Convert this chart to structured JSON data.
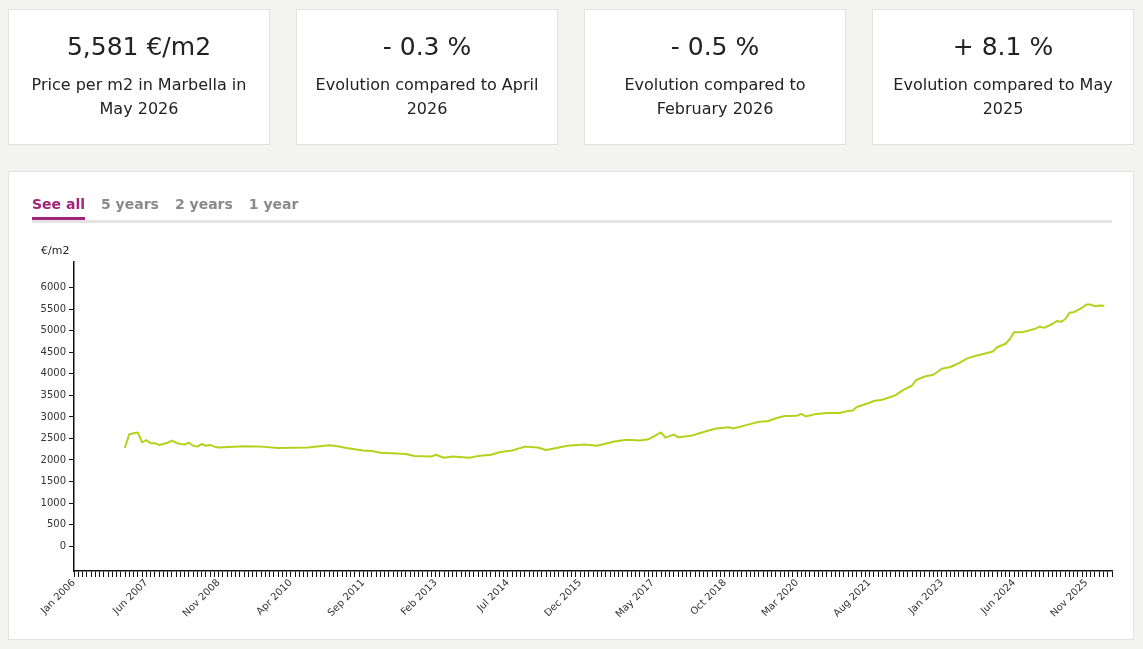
{
  "chart_data": [
    {
      "type": "other",
      "annotations": [
        "5,581 €/m2",
        "Price per m2 in Marbella in May 2026",
        "- 0.3 %",
        "Evolution compared to April 2026",
        "- 0.5 %",
        "Evolution compared to February 2026",
        "+ 8.1 %",
        "Evolution compared to May 2025"
      ]
    },
    {
      "type": "line",
      "ylabel": "€/m2",
      "annotations": [
        "See all",
        "5 years",
        "2 years",
        "1 year"
      ],
      "color": "#b3d21c",
      "marker": "none",
      "line_style": "solid",
      "grid": false,
      "x": [
        "2007-01",
        "2007-02",
        "2007-03",
        "2007-04",
        "2007-05",
        "2007-06",
        "2007-07",
        "2007-08",
        "2007-09",
        "2007-10",
        "2007-11",
        "2007-12",
        "2008-01",
        "2008-02",
        "2008-03",
        "2008-04",
        "2008-05",
        "2008-06",
        "2008-07",
        "2008-08",
        "2008-09",
        "2008-10",
        "2008-11",
        "2009-05",
        "2009-09",
        "2010-01",
        "2010-08",
        "2011-01",
        "2011-03",
        "2011-05",
        "2011-07",
        "2011-09",
        "2011-11",
        "2012-01",
        "2012-05",
        "2012-07",
        "2012-09",
        "2013-01",
        "2013-02",
        "2013-04",
        "2013-06",
        "2013-10",
        "2013-12",
        "2014-03",
        "2014-05",
        "2014-08",
        "2014-11",
        "2015-02",
        "2015-04",
        "2015-07",
        "2015-09",
        "2016-01",
        "2016-04",
        "2016-08",
        "2016-11",
        "2017-02",
        "2017-04",
        "2017-07",
        "2017-08",
        "2017-10",
        "2017-11",
        "2018-02",
        "2018-04",
        "2018-06",
        "2018-08",
        "2018-11",
        "2018-12",
        "2019-03",
        "2019-06",
        "2019-08",
        "2019-10",
        "2019-12",
        "2020-03",
        "2020-04",
        "2020-05",
        "2020-07",
        "2020-10",
        "2021-01",
        "2021-03",
        "2021-04",
        "2021-05",
        "2021-08",
        "2021-09",
        "2021-11",
        "2022-02",
        "2022-04",
        "2022-06",
        "2022-07",
        "2022-09",
        "2022-11",
        "2023-01",
        "2023-03",
        "2023-05",
        "2023-07",
        "2023-09",
        "2023-11",
        "2024-01",
        "2024-02",
        "2024-04",
        "2024-05",
        "2024-06",
        "2024-08",
        "2024-11",
        "2024-12",
        "2025-01",
        "2025-03",
        "2025-04",
        "2025-05",
        "2025-06",
        "2025-07",
        "2025-08",
        "2025-10",
        "2025-11",
        "2025-12",
        "2026-01",
        "2026-02",
        "2026-03"
      ],
      "values": [
        2295,
        2600,
        2620,
        2640,
        2410,
        2460,
        2390,
        2390,
        2350,
        2370,
        2400,
        2450,
        2400,
        2370,
        2360,
        2400,
        2330,
        2310,
        2370,
        2330,
        2350,
        2310,
        2290,
        2320,
        2310,
        2280,
        2290,
        2340,
        2320,
        2280,
        2250,
        2220,
        2210,
        2170,
        2150,
        2140,
        2090,
        2080,
        2120,
        2050,
        2080,
        2050,
        2090,
        2120,
        2180,
        2220,
        2310,
        2290,
        2230,
        2290,
        2330,
        2360,
        2330,
        2430,
        2470,
        2450,
        2480,
        2640,
        2520,
        2590,
        2530,
        2560,
        2620,
        2680,
        2730,
        2760,
        2730,
        2810,
        2890,
        2900,
        2970,
        3020,
        3030,
        3070,
        3010,
        3060,
        3090,
        3090,
        3140,
        3150,
        3230,
        3330,
        3370,
        3400,
        3500,
        3630,
        3730,
        3860,
        3940,
        3980,
        4120,
        4160,
        4250,
        4360,
        4420,
        4470,
        4520,
        4620,
        4700,
        4810,
        4970,
        4970,
        5050,
        5100,
        5070,
        5160,
        5230,
        5210,
        5270,
        5420,
        5430,
        5540,
        5610,
        5610,
        5570,
        5590,
        5581
      ],
      "ylim": [
        -580,
        6600
      ],
      "yticks": [
        0,
        500,
        1000,
        1500,
        2000,
        2500,
        3000,
        3500,
        4000,
        4500,
        5000,
        5500,
        6000
      ],
      "xlim": [
        "2006-01",
        "2026-05"
      ],
      "xticks": [
        {
          "value": "2006-01",
          "label": "Jan 2006"
        },
        {
          "value": "2006-02",
          "label": null
        },
        {
          "value": "2006-03",
          "label": null
        },
        {
          "value": "2006-04",
          "label": null
        },
        {
          "value": "2006-05",
          "label": null
        },
        {
          "value": "2006-06",
          "label": null
        },
        {
          "value": "2006-07",
          "label": null
        },
        {
          "value": "2006-08",
          "label": null
        },
        {
          "value": "2006-09",
          "label": null
        },
        {
          "value": "2006-10",
          "label": null
        },
        {
          "value": "2006-11",
          "label": null
        },
        {
          "value": "2006-12",
          "label": null
        },
        {
          "value": "2007-01",
          "label": null
        },
        {
          "value": "2007-02",
          "label": null
        },
        {
          "value": "2007-03",
          "label": null
        },
        {
          "value": "2007-04",
          "label": null
        },
        {
          "value": "2007-05",
          "label": null
        },
        {
          "value": "2007-06",
          "label": "Jun 2007"
        },
        {
          "value": "2007-07",
          "label": null
        },
        {
          "value": "2007-08",
          "label": null
        },
        {
          "value": "2007-09",
          "label": null
        },
        {
          "value": "2007-10",
          "label": null
        },
        {
          "value": "2007-11",
          "label": null
        },
        {
          "value": "2007-12",
          "label": null
        },
        {
          "value": "2008-01",
          "label": null
        },
        {
          "value": "2008-02",
          "label": null
        },
        {
          "value": "2008-03",
          "label": null
        },
        {
          "value": "2008-04",
          "label": null
        },
        {
          "value": "2008-05",
          "label": null
        },
        {
          "value": "2008-06",
          "label": null
        },
        {
          "value": "2008-07",
          "label": null
        },
        {
          "value": "2008-08",
          "label": null
        },
        {
          "value": "2008-09",
          "label": null
        },
        {
          "value": "2008-10",
          "label": null
        },
        {
          "value": "2008-11",
          "label": "Nov 2008"
        },
        {
          "value": "2008-12",
          "label": null
        },
        {
          "value": "2009-01",
          "label": null
        },
        {
          "value": "2009-02",
          "label": null
        },
        {
          "value": "2009-03",
          "label": null
        },
        {
          "value": "2009-04",
          "label": null
        },
        {
          "value": "2009-05",
          "label": null
        },
        {
          "value": "2009-06",
          "label": null
        },
        {
          "value": "2009-07",
          "label": null
        },
        {
          "value": "2009-08",
          "label": null
        },
        {
          "value": "2009-09",
          "label": null
        },
        {
          "value": "2009-10",
          "label": null
        },
        {
          "value": "2009-11",
          "label": null
        },
        {
          "value": "2009-12",
          "label": null
        },
        {
          "value": "2010-01",
          "label": null
        },
        {
          "value": "2010-02",
          "label": null
        },
        {
          "value": "2010-03",
          "label": null
        },
        {
          "value": "2010-04",
          "label": "Apr 2010"
        },
        {
          "value": "2010-05",
          "label": null
        },
        {
          "value": "2010-06",
          "label": null
        },
        {
          "value": "2010-07",
          "label": null
        },
        {
          "value": "2010-08",
          "label": null
        },
        {
          "value": "2010-09",
          "label": null
        },
        {
          "value": "2010-10",
          "label": null
        },
        {
          "value": "2010-11",
          "label": null
        },
        {
          "value": "2010-12",
          "label": null
        },
        {
          "value": "2011-01",
          "label": null
        },
        {
          "value": "2011-02",
          "label": null
        },
        {
          "value": "2011-03",
          "label": null
        },
        {
          "value": "2011-04",
          "label": null
        },
        {
          "value": "2011-05",
          "label": null
        },
        {
          "value": "2011-06",
          "label": null
        },
        {
          "value": "2011-07",
          "label": null
        },
        {
          "value": "2011-08",
          "label": null
        },
        {
          "value": "2011-09",
          "label": "Sep 2011"
        },
        {
          "value": "2011-10",
          "label": null
        },
        {
          "value": "2011-11",
          "label": null
        },
        {
          "value": "2011-12",
          "label": null
        },
        {
          "value": "2012-01",
          "label": null
        },
        {
          "value": "2012-02",
          "label": null
        },
        {
          "value": "2012-03",
          "label": null
        },
        {
          "value": "2012-04",
          "label": null
        },
        {
          "value": "2012-05",
          "label": null
        },
        {
          "value": "2012-06",
          "label": null
        },
        {
          "value": "2012-07",
          "label": null
        },
        {
          "value": "2012-08",
          "label": null
        },
        {
          "value": "2012-09",
          "label": null
        },
        {
          "value": "2012-10",
          "label": null
        },
        {
          "value": "2012-11",
          "label": null
        },
        {
          "value": "2012-12",
          "label": null
        },
        {
          "value": "2013-01",
          "label": null
        },
        {
          "value": "2013-02",
          "label": "Feb 2013"
        },
        {
          "value": "2013-03",
          "label": null
        },
        {
          "value": "2013-04",
          "label": null
        },
        {
          "value": "2013-05",
          "label": null
        },
        {
          "value": "2013-06",
          "label": null
        },
        {
          "value": "2013-07",
          "label": null
        },
        {
          "value": "2013-08",
          "label": null
        },
        {
          "value": "2013-09",
          "label": null
        },
        {
          "value": "2013-10",
          "label": null
        },
        {
          "value": "2013-11",
          "label": null
        },
        {
          "value": "2013-12",
          "label": null
        },
        {
          "value": "2014-01",
          "label": null
        },
        {
          "value": "2014-02",
          "label": null
        },
        {
          "value": "2014-03",
          "label": null
        },
        {
          "value": "2014-04",
          "label": null
        },
        {
          "value": "2014-05",
          "label": null
        },
        {
          "value": "2014-06",
          "label": null
        },
        {
          "value": "2014-07",
          "label": "Jul 2014"
        },
        {
          "value": "2014-08",
          "label": null
        },
        {
          "value": "2014-09",
          "label": null
        },
        {
          "value": "2014-10",
          "label": null
        },
        {
          "value": "2014-11",
          "label": null
        },
        {
          "value": "2014-12",
          "label": null
        },
        {
          "value": "2015-01",
          "label": null
        },
        {
          "value": "2015-02",
          "label": null
        },
        {
          "value": "2015-03",
          "label": null
        },
        {
          "value": "2015-04",
          "label": null
        },
        {
          "value": "2015-05",
          "label": null
        },
        {
          "value": "2015-06",
          "label": null
        },
        {
          "value": "2015-07",
          "label": null
        },
        {
          "value": "2015-08",
          "label": null
        },
        {
          "value": "2015-09",
          "label": null
        },
        {
          "value": "2015-10",
          "label": null
        },
        {
          "value": "2015-11",
          "label": null
        },
        {
          "value": "2015-12",
          "label": "Dec 2015"
        },
        {
          "value": "2016-01",
          "label": null
        },
        {
          "value": "2016-02",
          "label": null
        },
        {
          "value": "2016-03",
          "label": null
        },
        {
          "value": "2016-04",
          "label": null
        },
        {
          "value": "2016-05",
          "label": null
        },
        {
          "value": "2016-06",
          "label": null
        },
        {
          "value": "2016-07",
          "label": null
        },
        {
          "value": "2016-08",
          "label": null
        },
        {
          "value": "2016-09",
          "label": null
        },
        {
          "value": "2016-10",
          "label": null
        },
        {
          "value": "2016-11",
          "label": null
        },
        {
          "value": "2016-12",
          "label": null
        },
        {
          "value": "2017-01",
          "label": null
        },
        {
          "value": "2017-02",
          "label": null
        },
        {
          "value": "2017-03",
          "label": null
        },
        {
          "value": "2017-04",
          "label": null
        },
        {
          "value": "2017-05",
          "label": "May 2017"
        },
        {
          "value": "2017-06",
          "label": null
        },
        {
          "value": "2017-07",
          "label": null
        },
        {
          "value": "2017-08",
          "label": null
        },
        {
          "value": "2017-09",
          "label": null
        },
        {
          "value": "2017-10",
          "label": null
        },
        {
          "value": "2017-11",
          "label": null
        },
        {
          "value": "2017-12",
          "label": null
        },
        {
          "value": "2018-01",
          "label": null
        },
        {
          "value": "2018-02",
          "label": null
        },
        {
          "value": "2018-03",
          "label": null
        },
        {
          "value": "2018-04",
          "label": null
        },
        {
          "value": "2018-05",
          "label": null
        },
        {
          "value": "2018-06",
          "label": null
        },
        {
          "value": "2018-07",
          "label": null
        },
        {
          "value": "2018-08",
          "label": null
        },
        {
          "value": "2018-09",
          "label": null
        },
        {
          "value": "2018-10",
          "label": "Oct 2018"
        },
        {
          "value": "2018-11",
          "label": null
        },
        {
          "value": "2018-12",
          "label": null
        },
        {
          "value": "2019-01",
          "label": null
        },
        {
          "value": "2019-02",
          "label": null
        },
        {
          "value": "2019-03",
          "label": null
        },
        {
          "value": "2019-04",
          "label": null
        },
        {
          "value": "2019-05",
          "label": null
        },
        {
          "value": "2019-06",
          "label": null
        },
        {
          "value": "2019-07",
          "label": null
        },
        {
          "value": "2019-08",
          "label": null
        },
        {
          "value": "2019-09",
          "label": null
        },
        {
          "value": "2019-10",
          "label": null
        },
        {
          "value": "2019-11",
          "label": null
        },
        {
          "value": "2019-12",
          "label": null
        },
        {
          "value": "2020-01",
          "label": null
        },
        {
          "value": "2020-02",
          "label": null
        },
        {
          "value": "2020-03",
          "label": "Mar 2020"
        },
        {
          "value": "2020-04",
          "label": null
        },
        {
          "value": "2020-05",
          "label": null
        },
        {
          "value": "2020-06",
          "label": null
        },
        {
          "value": "2020-07",
          "label": null
        },
        {
          "value": "2020-08",
          "label": null
        },
        {
          "value": "2020-09",
          "label": null
        },
        {
          "value": "2020-10",
          "label": null
        },
        {
          "value": "2020-11",
          "label": null
        },
        {
          "value": "2020-12",
          "label": null
        },
        {
          "value": "2021-01",
          "label": null
        },
        {
          "value": "2021-02",
          "label": null
        },
        {
          "value": "2021-03",
          "label": null
        },
        {
          "value": "2021-04",
          "label": null
        },
        {
          "value": "2021-05",
          "label": null
        },
        {
          "value": "2021-06",
          "label": null
        },
        {
          "value": "2021-07",
          "label": null
        },
        {
          "value": "2021-08",
          "label": "Aug 2021"
        },
        {
          "value": "2021-09",
          "label": null
        },
        {
          "value": "2021-10",
          "label": null
        },
        {
          "value": "2021-11",
          "label": null
        },
        {
          "value": "2021-12",
          "label": null
        },
        {
          "value": "2022-01",
          "label": null
        },
        {
          "value": "2022-02",
          "label": null
        },
        {
          "value": "2022-03",
          "label": null
        },
        {
          "value": "2022-04",
          "label": null
        },
        {
          "value": "2022-05",
          "label": null
        },
        {
          "value": "2022-06",
          "label": null
        },
        {
          "value": "2022-07",
          "label": null
        },
        {
          "value": "2022-08",
          "label": null
        },
        {
          "value": "2022-09",
          "label": null
        },
        {
          "value": "2022-10",
          "label": null
        },
        {
          "value": "2022-11",
          "label": null
        },
        {
          "value": "2022-12",
          "label": null
        },
        {
          "value": "2023-01",
          "label": "Jan 2023"
        },
        {
          "value": "2023-02",
          "label": null
        },
        {
          "value": "2023-03",
          "label": null
        },
        {
          "value": "2023-04",
          "label": null
        },
        {
          "value": "2023-05",
          "label": null
        },
        {
          "value": "2023-06",
          "label": null
        },
        {
          "value": "2023-07",
          "label": null
        },
        {
          "value": "2023-08",
          "label": null
        },
        {
          "value": "2023-09",
          "label": null
        },
        {
          "value": "2023-10",
          "label": null
        },
        {
          "value": "2023-11",
          "label": null
        },
        {
          "value": "2023-12",
          "label": null
        },
        {
          "value": "2024-01",
          "label": null
        },
        {
          "value": "2024-02",
          "label": null
        },
        {
          "value": "2024-03",
          "label": null
        },
        {
          "value": "2024-04",
          "label": null
        },
        {
          "value": "2024-05",
          "label": null
        },
        {
          "value": "2024-06",
          "label": "Jun 2024"
        },
        {
          "value": "2024-07",
          "label": null
        },
        {
          "value": "2024-08",
          "label": null
        },
        {
          "value": "2024-09",
          "label": null
        },
        {
          "value": "2024-10",
          "label": null
        },
        {
          "value": "2024-11",
          "label": null
        },
        {
          "value": "2024-12",
          "label": null
        },
        {
          "value": "2025-01",
          "label": null
        },
        {
          "value": "2025-02",
          "label": null
        },
        {
          "value": "2025-03",
          "label": null
        },
        {
          "value": "2025-04",
          "label": null
        },
        {
          "value": "2025-05",
          "label": null
        },
        {
          "value": "2025-06",
          "label": null
        },
        {
          "value": "2025-07",
          "label": null
        },
        {
          "value": "2025-08",
          "label": null
        },
        {
          "value": "2025-09",
          "label": null
        },
        {
          "value": "2025-10",
          "label": null
        },
        {
          "value": "2025-11",
          "label": "Nov 2025"
        },
        {
          "value": "2025-12",
          "label": null
        },
        {
          "value": "2026-01",
          "label": null
        },
        {
          "value": "2026-02",
          "label": null
        },
        {
          "value": "2026-03",
          "label": null
        },
        {
          "value": "2026-04",
          "label": null
        },
        {
          "value": "2026-05",
          "label": null
        }
      ]
    }
  ]
}
